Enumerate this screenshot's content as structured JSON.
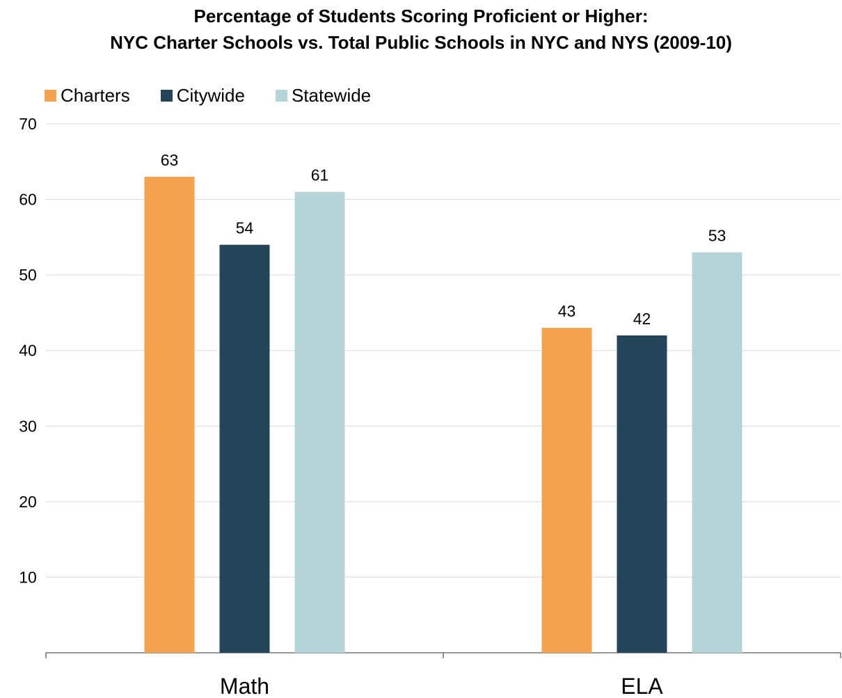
{
  "title_line1": "Percentage of Students Scoring Proficient or Higher:",
  "title_line2": "NYC Charter Schools vs. Total Public Schools in NYC and NYS (2009-10)",
  "chart_data": {
    "type": "bar",
    "title": "Percentage of Students Scoring Proficient or Higher: NYC Charter Schools vs. Total Public Schools in NYC and NYS (2009-10)",
    "categories": [
      "Math",
      "ELA"
    ],
    "series": [
      {
        "name": "Charters",
        "values": [
          63,
          43
        ],
        "color": "#f4a250"
      },
      {
        "name": "Citywide",
        "values": [
          54,
          42
        ],
        "color": "#244459"
      },
      {
        "name": "Statewide",
        "values": [
          61,
          53
        ],
        "color": "#b6d3d8"
      }
    ],
    "ylim": [
      0,
      70
    ],
    "yticks": [
      10,
      20,
      30,
      40,
      50,
      60,
      70
    ],
    "xlabel": "",
    "ylabel": "",
    "grid": true,
    "legend_position": "top-left",
    "data_labels": true
  }
}
